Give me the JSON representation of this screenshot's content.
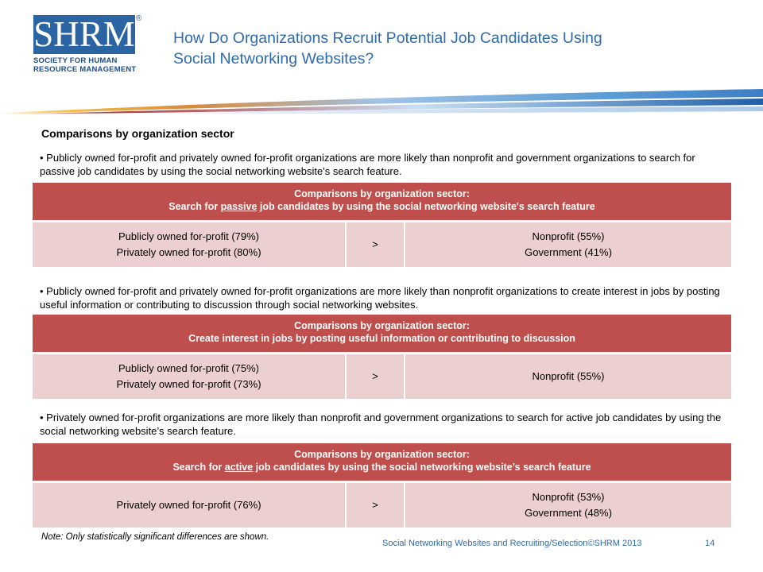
{
  "logo": {
    "mark": "SHRM",
    "registered": "®",
    "subtitle_line1": "SOCIETY FOR HUMAN",
    "subtitle_line2": "RESOURCE MANAGEMENT"
  },
  "title": {
    "line1": "How Do Organizations Recruit Potential Job Candidates Using",
    "line2": "Social Networking Websites?"
  },
  "section_heading": "Comparisons by organization sector",
  "bullets": [
    "• Publicly owned for-profit and privately owned for-profit organizations are more likely than nonprofit and government organizations to search for passive job candidates by using the social networking website's search feature.",
    "• Publicly owned for-profit and privately owned for-profit organizations are more likely than nonprofit organizations to create interest in jobs by posting useful information or contributing to discussion through social networking websites.",
    "• Privately owned for-profit organizations are more likely than nonprofit and government organizations to search for active job candidates by using the social networking website’s search feature."
  ],
  "tables": [
    {
      "head_line1": "Comparisons by organization sector:",
      "head_pre": "Search for ",
      "head_underlined": "passive",
      "head_post": " job candidates by using the social networking website's search feature",
      "left": [
        "Publicly owned for-profit (79%)",
        "Privately owned for-profit (80%)"
      ],
      "operator": ">",
      "right": [
        "Nonprofit (55%)",
        "Government (41%)"
      ]
    },
    {
      "head_line1": "Comparisons by organization sector:",
      "head_pre": "Create interest in jobs by posting useful information or contributing to discussion",
      "head_underlined": "",
      "head_post": "",
      "left": [
        "Publicly owned for-profit (75%)",
        "Privately owned for-profit (73%)"
      ],
      "operator": ">",
      "right": [
        "Nonprofit (55%)"
      ]
    },
    {
      "head_line1": "Comparisons by organization sector:",
      "head_pre": "Search for ",
      "head_underlined": "active",
      "head_post": " job candidates by using the social networking website’s search feature",
      "left": [
        "Privately owned for-profit (76%)"
      ],
      "operator": ">",
      "right": [
        "Nonprofit (53%)",
        "Government (48%)"
      ]
    }
  ],
  "note": "Note: Only statistically significant differences  are shown.",
  "footer": "Social Networking Websites and Recruiting/Selection©SHRM 2013",
  "page_number": "14",
  "colors": {
    "brand_blue": "#2a64a3",
    "title_blue": "#2e6bb0",
    "table_header": "#bf4f4c",
    "table_row": "#ecd0cf"
  }
}
